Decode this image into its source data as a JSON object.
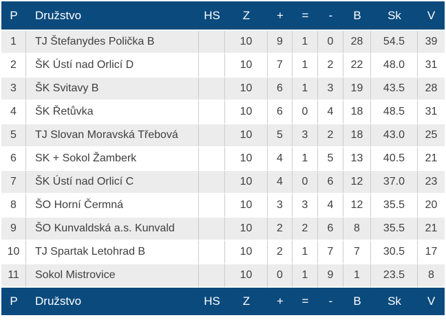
{
  "chart_data": {
    "type": "table",
    "title": "",
    "columns": [
      "P",
      "Družstvo",
      "HS",
      "Z",
      "+",
      "=",
      "-",
      "B",
      "Sk",
      "V"
    ],
    "rows": [
      [
        "1",
        "TJ Štefanydes Polička B",
        "",
        "10",
        "9",
        "1",
        "0",
        "28",
        "54.5",
        "39"
      ],
      [
        "2",
        "ŠK Ústí nad Orlicí D",
        "",
        "10",
        "7",
        "1",
        "2",
        "22",
        "48.0",
        "31"
      ],
      [
        "3",
        "ŠK Svitavy B",
        "",
        "10",
        "6",
        "1",
        "3",
        "19",
        "43.5",
        "28"
      ],
      [
        "4",
        "ŠK Řetůvka",
        "",
        "10",
        "6",
        "0",
        "4",
        "18",
        "48.5",
        "31"
      ],
      [
        "5",
        "TJ Slovan Moravská Třebová",
        "",
        "10",
        "5",
        "3",
        "2",
        "18",
        "43.0",
        "25"
      ],
      [
        "6",
        "SK + Sokol Žamberk",
        "",
        "10",
        "4",
        "1",
        "5",
        "13",
        "40.5",
        "21"
      ],
      [
        "7",
        "ŠK Ústí nad Orlicí C",
        "",
        "10",
        "4",
        "0",
        "6",
        "12",
        "37.0",
        "23"
      ],
      [
        "8",
        "ŠO Horní Čermná",
        "",
        "10",
        "3",
        "3",
        "4",
        "12",
        "35.5",
        "20"
      ],
      [
        "9",
        "ŠO Kunvaldská a.s. Kunvald",
        "",
        "10",
        "2",
        "2",
        "6",
        "8",
        "35.5",
        "21"
      ],
      [
        "10",
        "TJ Spartak Letohrad B",
        "",
        "10",
        "2",
        "1",
        "7",
        "7",
        "30.5",
        "17"
      ],
      [
        "11",
        "Sokol Mistrovice",
        "",
        "10",
        "0",
        "1",
        "9",
        "1",
        "23.5",
        "8"
      ]
    ],
    "legend_position": "none",
    "grid": true,
    "row_striping": "odd-rows-gray"
  },
  "colors": {
    "header_bg": "#0b4a7d",
    "header_text": "#ffffff",
    "alt_row_bg": "#ececec",
    "row_bg": "#ffffff",
    "grid_line": "#cccccc",
    "cell_text": "#3f3f3f"
  }
}
